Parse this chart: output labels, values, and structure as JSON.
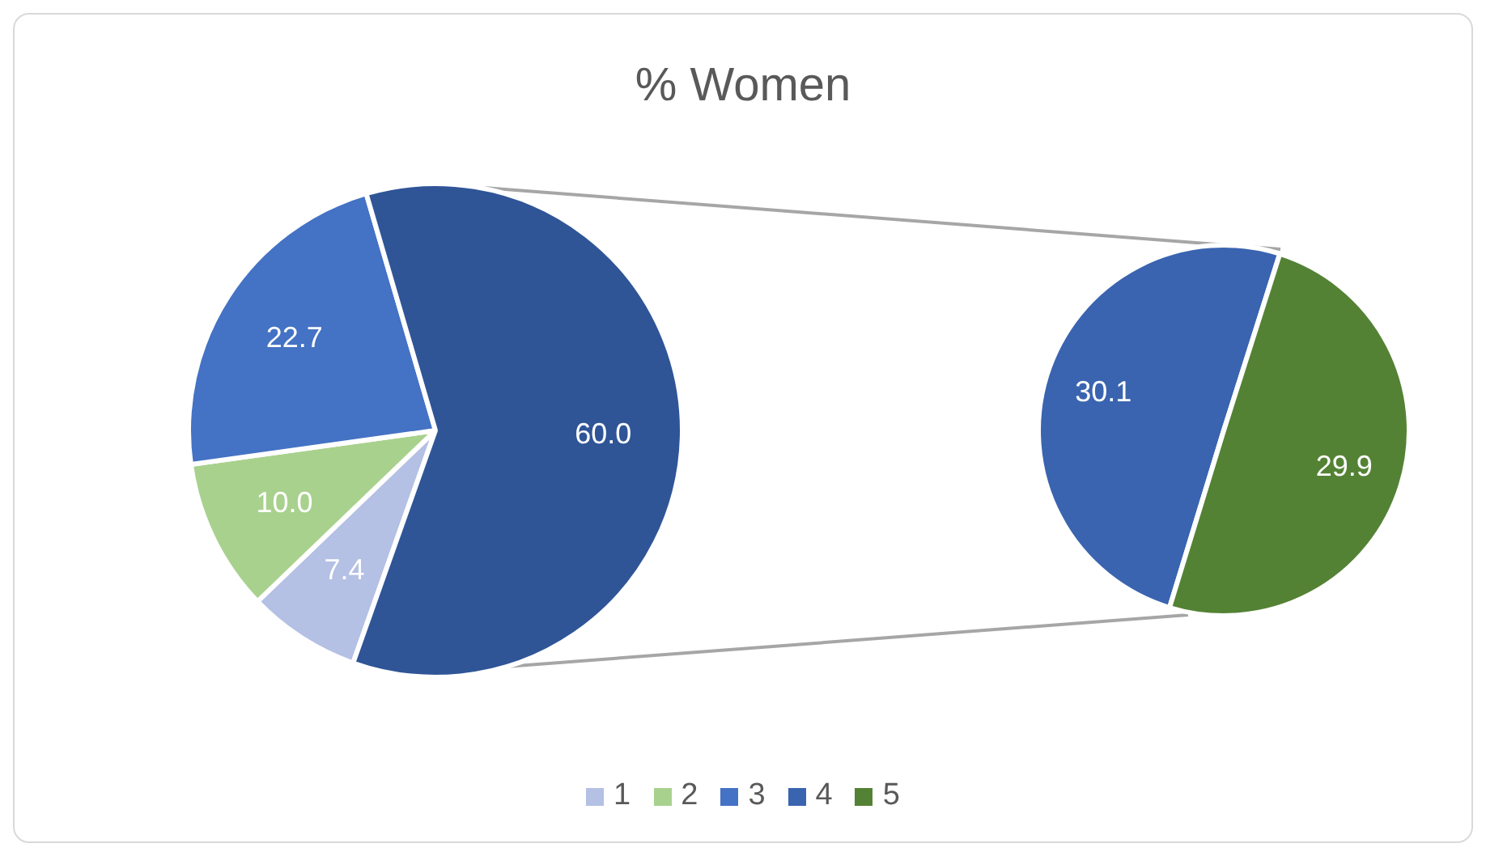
{
  "chart_data": [
    {
      "type": "pie",
      "title": "% Women",
      "categories": [
        "1",
        "2",
        "3",
        null
      ],
      "values": [
        7.4,
        10.0,
        22.7,
        60.0
      ],
      "colors": [
        "#b4c0e4",
        "#a9d18e",
        "#4472c4",
        "#2f5597"
      ],
      "value_labels": [
        "7.4",
        "10.0",
        "22.7",
        "60.0"
      ],
      "legend": "bottom"
    },
    {
      "type": "pie",
      "categories": [
        "4",
        "5"
      ],
      "values": [
        30.1,
        29.9
      ],
      "colors": [
        "#3a64b0",
        "#548235"
      ],
      "value_labels": [
        "30.1",
        "29.9"
      ],
      "legend": "bottom"
    }
  ]
}
